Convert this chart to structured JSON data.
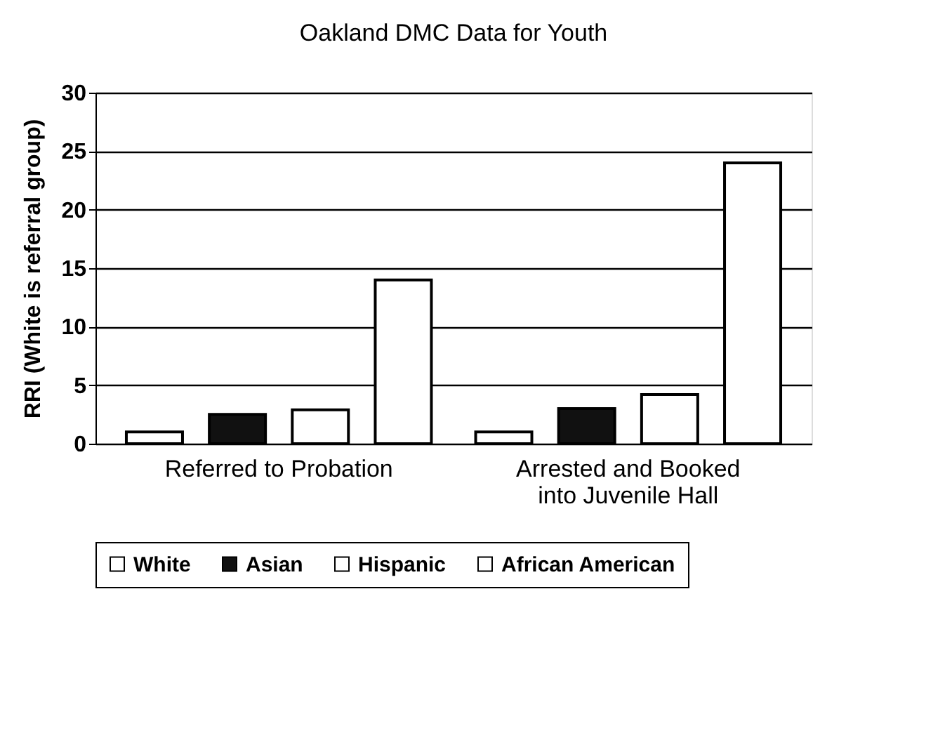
{
  "chart_data": {
    "type": "bar",
    "title": "Oakland DMC Data for Youth",
    "ylabel": "RRI (White is referral group)",
    "categories": [
      "Referred to Probation",
      "Arrested and Booked into Juvenile Hall"
    ],
    "series": [
      {
        "name": "White",
        "color": "#ffffff",
        "values": [
          1,
          1
        ]
      },
      {
        "name": "Asian",
        "color": "#111111",
        "values": [
          2.5,
          3
        ]
      },
      {
        "name": "Hispanic",
        "color": "#ffffff",
        "values": [
          2.9,
          4.2
        ]
      },
      {
        "name": "African American",
        "color": "#ffffff",
        "values": [
          14,
          24
        ]
      }
    ],
    "ylim": [
      0,
      30
    ],
    "yticks": [
      0,
      5,
      10,
      15,
      20,
      25,
      30
    ],
    "grid": "y",
    "legend": "bottom"
  }
}
